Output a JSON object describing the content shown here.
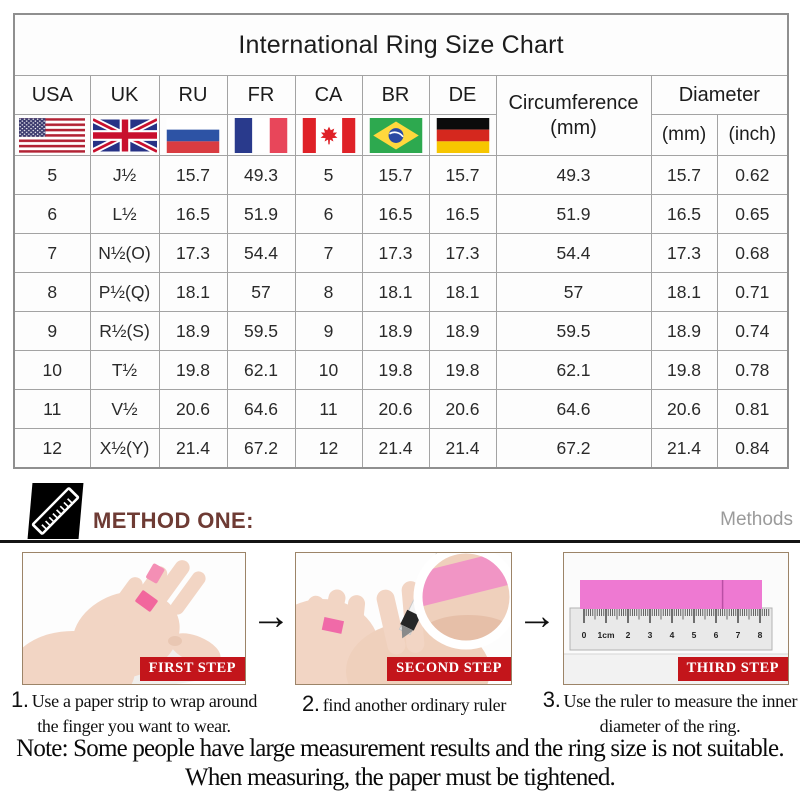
{
  "title": "International Ring Size Chart",
  "table": {
    "columns": [
      "USA",
      "UK",
      "RU",
      "FR",
      "CA",
      "BR",
      "DE"
    ],
    "flags": [
      "usa",
      "uk",
      "ru",
      "fr",
      "ca",
      "br",
      "de"
    ],
    "circumference_header": "Circumference",
    "circumference_unit": "(mm)",
    "diameter_header": "Diameter",
    "diameter_units": [
      "(mm)",
      "(inch)"
    ],
    "rows": [
      [
        "5",
        "J½",
        "15.7",
        "49.3",
        "5",
        "15.7",
        "15.7",
        "49.3",
        "15.7",
        "0.62"
      ],
      [
        "6",
        "L½",
        "16.5",
        "51.9",
        "6",
        "16.5",
        "16.5",
        "51.9",
        "16.5",
        "0.65"
      ],
      [
        "7",
        "N½(O)",
        "17.3",
        "54.4",
        "7",
        "17.3",
        "17.3",
        "54.4",
        "17.3",
        "0.68"
      ],
      [
        "8",
        "P½(Q)",
        "18.1",
        "57",
        "8",
        "18.1",
        "18.1",
        "57",
        "18.1",
        "0.71"
      ],
      [
        "9",
        "R½(S)",
        "18.9",
        "59.5",
        "9",
        "18.9",
        "18.9",
        "59.5",
        "18.9",
        "0.74"
      ],
      [
        "10",
        "T½",
        "19.8",
        "62.1",
        "10",
        "19.8",
        "19.8",
        "62.1",
        "19.8",
        "0.78"
      ],
      [
        "11",
        "V½",
        "20.6",
        "64.6",
        "11",
        "20.6",
        "20.6",
        "64.6",
        "20.6",
        "0.81"
      ],
      [
        "12",
        "X½(Y)",
        "21.4",
        "67.2",
        "12",
        "21.4",
        "21.4",
        "67.2",
        "21.4",
        "0.84"
      ]
    ]
  },
  "method": {
    "title": "METHOD ONE:",
    "right_label": "Methods"
  },
  "icons": {
    "arrow_right": "→",
    "ruler_icon": "diagonal-ruler"
  },
  "steps": [
    {
      "badge": "FIRST STEP",
      "number": "1.",
      "caption_line1": "Use a paper strip to wrap around",
      "caption_line2": "the finger you want to wear."
    },
    {
      "badge": "SECOND STEP",
      "number": "2.",
      "caption_line1": "find another ordinary ruler",
      "caption_line2": ""
    },
    {
      "badge": "THIRD STEP",
      "number": "3.",
      "caption_line1": "Use the ruler to measure the inner",
      "caption_line2": "diameter of the ring."
    }
  ],
  "ruler": {
    "labels": [
      "0",
      "1cm",
      "2",
      "3",
      "4",
      "5",
      "6",
      "7",
      "8"
    ]
  },
  "note_line1": "Note: Some people have large measurement results and the ring size is not suitable.",
  "note_line2": "When measuring, the paper must be tightened.",
  "colors": {
    "method_title": "#6E3B34",
    "badge_red": "#C3151B",
    "strip_pink": "#EE79D2",
    "band_pink": "#F2679D",
    "methods_gray": "#9B9B9B",
    "grid_gray": "#A3A3A3"
  }
}
